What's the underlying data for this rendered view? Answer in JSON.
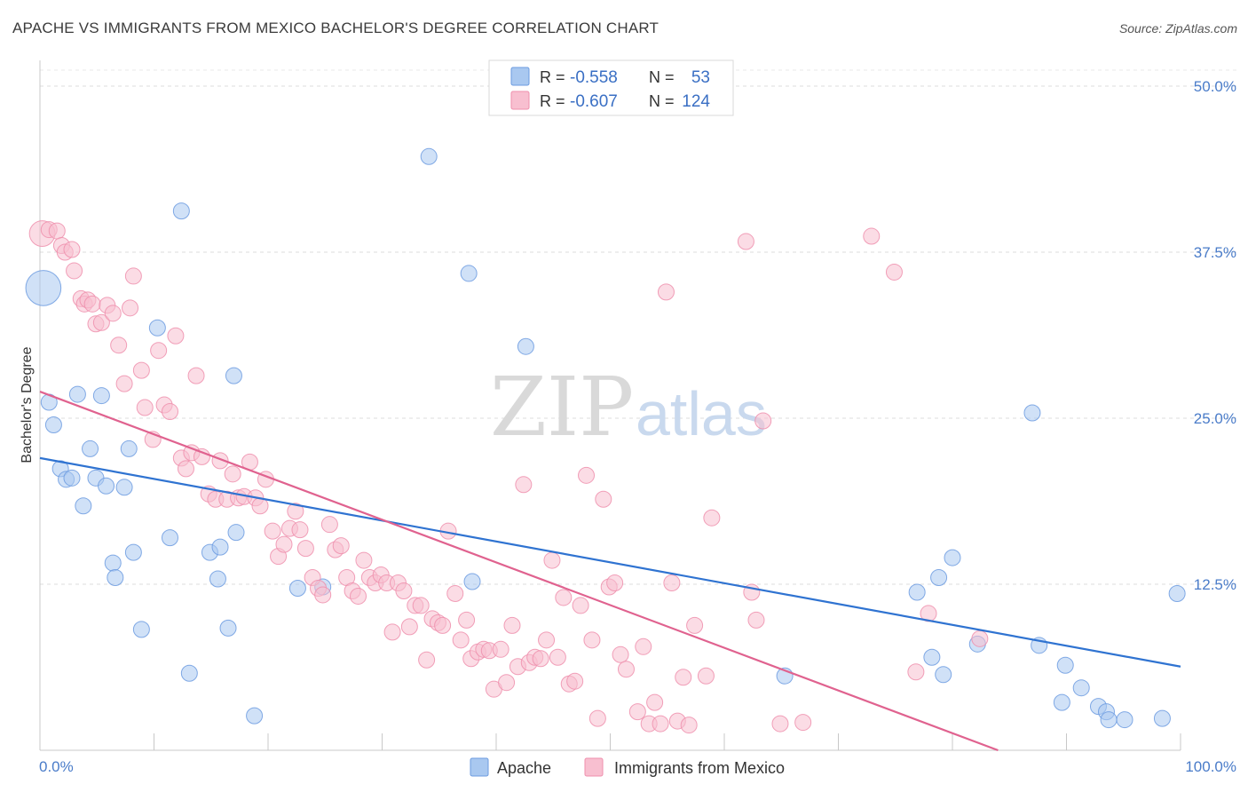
{
  "title": "APACHE VS IMMIGRANTS FROM MEXICO BACHELOR'S DEGREE CORRELATION CHART",
  "source": "Source: ZipAtlas.com",
  "watermark": {
    "zip": "ZIP",
    "atlas": "atlas"
  },
  "legend": {
    "rows": [
      {
        "r_label": "R =",
        "r_value": "-0.558",
        "n_label": "N =",
        "n_value": "53",
        "color": "#a9c8f0",
        "stroke": "#6c9be0"
      },
      {
        "r_label": "R =",
        "r_value": "-0.607",
        "n_label": "N =",
        "n_value": "124",
        "color": "#f8bfd0",
        "stroke": "#ef8fad"
      }
    ]
  },
  "bottom_legend": [
    {
      "label": "Apache",
      "color": "#a9c8f0",
      "stroke": "#6c9be0"
    },
    {
      "label": "Immigrants from Mexico",
      "color": "#f8bfd0",
      "stroke": "#ef8fad"
    }
  ],
  "chart_data": {
    "type": "scatter",
    "title": "APACHE VS IMMIGRANTS FROM MEXICO BACHELOR'S DEGREE CORRELATION CHART",
    "xlabel": "",
    "ylabel": "Bachelor's Degree",
    "xlim": [
      0,
      100
    ],
    "ylim": [
      0,
      50
    ],
    "x_tick_labels": [
      "0.0%",
      "100.0%"
    ],
    "y_ticks": [
      12.5,
      25.0,
      37.5,
      50.0
    ],
    "y_tick_labels": [
      "12.5%",
      "25.0%",
      "37.5%",
      "50.0%"
    ],
    "grid": true,
    "legend_position": "top-center",
    "series": [
      {
        "name": "Apache",
        "color": "#a9c8f0",
        "stroke": "#6c9be0",
        "trend_color": "#2f73d1",
        "trend": {
          "x": [
            0,
            100
          ],
          "y": [
            22.0,
            6.3
          ]
        },
        "points": [
          [
            0.3,
            34.8,
            2.2
          ],
          [
            0.8,
            26.2,
            1
          ],
          [
            1.2,
            24.5,
            1
          ],
          [
            1.8,
            21.2,
            1
          ],
          [
            2.3,
            20.4,
            1
          ],
          [
            2.8,
            20.5,
            1
          ],
          [
            3.3,
            26.8,
            1
          ],
          [
            3.8,
            18.4,
            1
          ],
          [
            4.4,
            22.7,
            1
          ],
          [
            4.9,
            20.5,
            1
          ],
          [
            5.4,
            26.7,
            1
          ],
          [
            5.8,
            19.9,
            1
          ],
          [
            6.4,
            14.1,
            1
          ],
          [
            6.6,
            13.0,
            1
          ],
          [
            7.4,
            19.8,
            1
          ],
          [
            7.8,
            22.7,
            1
          ],
          [
            8.2,
            14.9,
            1
          ],
          [
            8.9,
            9.1,
            1
          ],
          [
            10.3,
            31.8,
            1
          ],
          [
            11.4,
            16.0,
            1
          ],
          [
            12.4,
            40.6,
            1
          ],
          [
            13.1,
            5.8,
            1
          ],
          [
            14.9,
            14.9,
            1
          ],
          [
            15.6,
            12.9,
            1
          ],
          [
            15.8,
            15.3,
            1
          ],
          [
            16.5,
            9.2,
            1
          ],
          [
            17.0,
            28.2,
            1
          ],
          [
            17.2,
            16.4,
            1
          ],
          [
            18.8,
            2.6,
            1
          ],
          [
            22.6,
            12.2,
            1
          ],
          [
            24.8,
            12.3,
            1
          ],
          [
            34.1,
            44.7,
            1
          ],
          [
            37.6,
            35.9,
            1
          ],
          [
            37.9,
            12.7,
            1
          ],
          [
            42.6,
            30.4,
            1
          ],
          [
            65.3,
            5.6,
            1
          ],
          [
            76.9,
            11.9,
            1
          ],
          [
            78.2,
            7.0,
            1
          ],
          [
            78.8,
            13.0,
            1
          ],
          [
            79.2,
            5.7,
            1
          ],
          [
            80.0,
            14.5,
            1
          ],
          [
            82.2,
            8.0,
            1
          ],
          [
            87.0,
            25.4,
            1
          ],
          [
            87.6,
            7.9,
            1
          ],
          [
            89.6,
            3.6,
            1
          ],
          [
            89.9,
            6.4,
            1
          ],
          [
            91.3,
            4.7,
            1
          ],
          [
            92.8,
            3.3,
            1
          ],
          [
            93.5,
            2.9,
            1
          ],
          [
            93.7,
            2.3,
            1
          ],
          [
            95.1,
            2.3,
            1
          ],
          [
            98.4,
            2.4,
            1
          ],
          [
            99.7,
            11.8,
            1
          ]
        ]
      },
      {
        "name": "Immigrants from Mexico",
        "color": "#f8bfd0",
        "stroke": "#ef8fad",
        "trend_color": "#e0628f",
        "trend": {
          "x": [
            0,
            84.0
          ],
          "y": [
            27.0,
            0
          ]
        },
        "points": [
          [
            0.2,
            38.9,
            1.6
          ],
          [
            0.8,
            39.2,
            1
          ],
          [
            1.5,
            39.1,
            1
          ],
          [
            1.9,
            38.0,
            1
          ],
          [
            2.2,
            37.5,
            1
          ],
          [
            2.8,
            37.7,
            1
          ],
          [
            3.0,
            36.1,
            1
          ],
          [
            3.6,
            34.0,
            1
          ],
          [
            3.9,
            33.6,
            1
          ],
          [
            4.2,
            33.9,
            1
          ],
          [
            4.6,
            33.6,
            1
          ],
          [
            4.9,
            32.1,
            1
          ],
          [
            5.4,
            32.2,
            1
          ],
          [
            5.9,
            33.5,
            1
          ],
          [
            6.4,
            32.9,
            1
          ],
          [
            6.9,
            30.5,
            1
          ],
          [
            7.4,
            27.6,
            1
          ],
          [
            7.9,
            33.3,
            1
          ],
          [
            8.2,
            35.7,
            1
          ],
          [
            8.9,
            28.6,
            1
          ],
          [
            9.2,
            25.8,
            1
          ],
          [
            9.9,
            23.4,
            1
          ],
          [
            10.4,
            30.1,
            1
          ],
          [
            10.9,
            26.0,
            1
          ],
          [
            11.4,
            25.5,
            1
          ],
          [
            11.9,
            31.2,
            1
          ],
          [
            12.4,
            22.0,
            1
          ],
          [
            12.8,
            21.2,
            1
          ],
          [
            13.3,
            22.4,
            1
          ],
          [
            13.7,
            28.2,
            1
          ],
          [
            14.2,
            22.1,
            1
          ],
          [
            14.8,
            19.3,
            1
          ],
          [
            15.4,
            18.9,
            1
          ],
          [
            15.8,
            21.8,
            1
          ],
          [
            16.4,
            18.9,
            1
          ],
          [
            16.9,
            20.8,
            1
          ],
          [
            17.4,
            19.0,
            1
          ],
          [
            17.9,
            19.1,
            1
          ],
          [
            18.4,
            21.7,
            1
          ],
          [
            18.9,
            19.0,
            1
          ],
          [
            19.3,
            18.4,
            1
          ],
          [
            19.8,
            20.4,
            1
          ],
          [
            20.4,
            16.5,
            1
          ],
          [
            20.9,
            14.6,
            1
          ],
          [
            21.4,
            15.5,
            1
          ],
          [
            21.9,
            16.7,
            1
          ],
          [
            22.4,
            18.0,
            1
          ],
          [
            22.8,
            16.6,
            1
          ],
          [
            23.3,
            15.2,
            1
          ],
          [
            23.9,
            13.0,
            1
          ],
          [
            24.4,
            12.2,
            1
          ],
          [
            24.8,
            11.7,
            1
          ],
          [
            25.4,
            17.0,
            1
          ],
          [
            25.9,
            15.1,
            1
          ],
          [
            26.4,
            15.4,
            1
          ],
          [
            26.9,
            13.0,
            1
          ],
          [
            27.4,
            12.0,
            1
          ],
          [
            27.9,
            11.6,
            1
          ],
          [
            28.4,
            14.3,
            1
          ],
          [
            28.9,
            13.0,
            1
          ],
          [
            29.4,
            12.6,
            1
          ],
          [
            29.9,
            13.2,
            1
          ],
          [
            30.4,
            12.6,
            1
          ],
          [
            30.9,
            8.9,
            1
          ],
          [
            31.4,
            12.6,
            1
          ],
          [
            31.9,
            12.0,
            1
          ],
          [
            32.4,
            9.3,
            1
          ],
          [
            32.9,
            10.9,
            1
          ],
          [
            33.4,
            10.9,
            1
          ],
          [
            33.9,
            6.8,
            1
          ],
          [
            34.4,
            9.9,
            1
          ],
          [
            34.9,
            9.6,
            1
          ],
          [
            35.3,
            9.4,
            1
          ],
          [
            35.8,
            16.5,
            1
          ],
          [
            36.4,
            11.8,
            1
          ],
          [
            36.9,
            8.3,
            1
          ],
          [
            37.4,
            9.8,
            1
          ],
          [
            37.8,
            6.9,
            1
          ],
          [
            38.4,
            7.4,
            1
          ],
          [
            38.9,
            7.6,
            1
          ],
          [
            39.4,
            7.5,
            1
          ],
          [
            39.8,
            4.6,
            1
          ],
          [
            40.4,
            7.6,
            1
          ],
          [
            40.9,
            5.1,
            1
          ],
          [
            41.4,
            9.4,
            1
          ],
          [
            41.9,
            6.3,
            1
          ],
          [
            42.4,
            20.0,
            1
          ],
          [
            42.9,
            6.6,
            1
          ],
          [
            43.4,
            7.0,
            1
          ],
          [
            43.9,
            6.9,
            1
          ],
          [
            44.4,
            8.3,
            1
          ],
          [
            44.9,
            14.3,
            1
          ],
          [
            45.4,
            7.0,
            1
          ],
          [
            45.9,
            11.5,
            1
          ],
          [
            46.4,
            5.0,
            1
          ],
          [
            46.9,
            5.2,
            1
          ],
          [
            47.4,
            10.9,
            1
          ],
          [
            47.9,
            20.7,
            1
          ],
          [
            48.4,
            8.3,
            1
          ],
          [
            48.9,
            2.4,
            1
          ],
          [
            49.4,
            18.9,
            1
          ],
          [
            49.9,
            12.3,
            1
          ],
          [
            50.4,
            12.6,
            1
          ],
          [
            50.9,
            7.2,
            1
          ],
          [
            51.4,
            6.1,
            1
          ],
          [
            52.4,
            2.9,
            1
          ],
          [
            52.9,
            7.8,
            1
          ],
          [
            53.4,
            2.0,
            1
          ],
          [
            53.9,
            3.6,
            1
          ],
          [
            54.4,
            2.0,
            1
          ],
          [
            54.9,
            34.5,
            1
          ],
          [
            55.4,
            12.6,
            1
          ],
          [
            55.9,
            2.2,
            1
          ],
          [
            56.4,
            5.5,
            1
          ],
          [
            56.9,
            1.9,
            1
          ],
          [
            57.4,
            9.4,
            1
          ],
          [
            58.4,
            5.6,
            1
          ],
          [
            58.9,
            17.5,
            1
          ],
          [
            61.9,
            38.3,
            1
          ],
          [
            62.4,
            11.9,
            1
          ],
          [
            62.8,
            9.8,
            1
          ],
          [
            63.4,
            24.8,
            1
          ],
          [
            64.9,
            2.0,
            1
          ],
          [
            66.9,
            2.1,
            1
          ],
          [
            72.9,
            38.7,
            1
          ],
          [
            74.9,
            36.0,
            1
          ],
          [
            76.8,
            5.9,
            1
          ],
          [
            77.9,
            10.3,
            1
          ],
          [
            82.4,
            8.4,
            1
          ]
        ]
      }
    ]
  }
}
